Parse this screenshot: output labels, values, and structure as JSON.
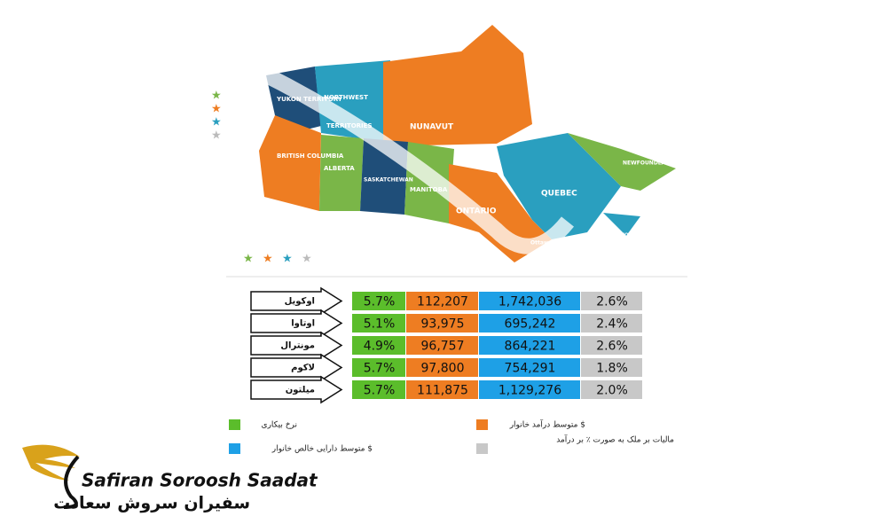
{
  "map": {
    "labels": [
      "YUKON TERRITORY",
      "NORTHWEST",
      "TERRITORIES",
      "NUNAVUT",
      "BRITISH COLUMBIA",
      "ALBERTA",
      "SASKATCHEWAN",
      "MANITOBA",
      "ONTARIO",
      "QUEBEC",
      "NEWFOUNDLAND",
      "NOVA SCOTIA",
      "Ottawa"
    ]
  },
  "table": {
    "rows": [
      [
        "اوکویل",
        "5.7%",
        "112,207",
        "1,742,036",
        "2.6%"
      ],
      [
        "اوتاوا",
        "5.1%",
        "93,975",
        "695,242",
        "2.4%"
      ],
      [
        "مونترال",
        "4.9%",
        "96,757",
        "864,221",
        "2.6%"
      ],
      [
        "لاکوم",
        "5.7%",
        "97,800",
        "754,291",
        "1.8%"
      ],
      [
        "میلتون",
        "5.7%",
        "111,875",
        "1,129,276",
        "2.0%"
      ]
    ]
  },
  "legend": [
    "نرخ بیکاری",
    "متوسط درآمد خانوار $",
    "متوسط دارایی خالص خانوار $",
    "مالیات بر ملک به صورت ٪ بر درآمد"
  ],
  "logo": {
    "latin": "Safiran Soroosh Saadat",
    "persian": "سفیران سروش سعادت"
  }
}
